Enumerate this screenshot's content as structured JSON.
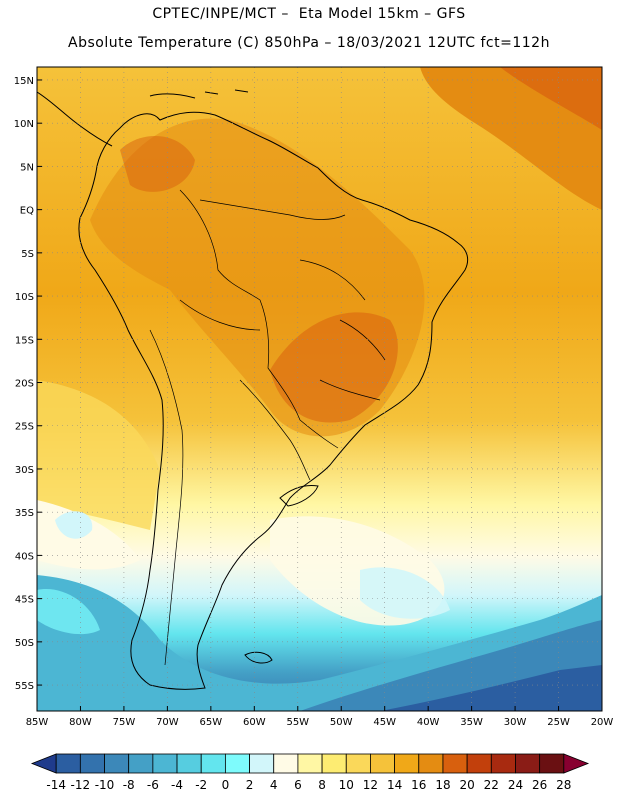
{
  "header": {
    "title_line1": "CPTEC/INPE/MCT –  Eta Model 15km – GFS",
    "title_line2": "Absolute Temperature (C) 850hPa – 18/03/2021 12UTC fct=112h"
  },
  "map": {
    "lat_labels": [
      "15N",
      "10N",
      "5N",
      "EQ",
      "5S",
      "10S",
      "15S",
      "20S",
      "25S",
      "30S",
      "35S",
      "40S",
      "45S",
      "50S",
      "55S"
    ],
    "lat_values": [
      15,
      10,
      5,
      0,
      -5,
      -10,
      -15,
      -20,
      -25,
      -30,
      -35,
      -40,
      -45,
      -50,
      -55
    ],
    "lon_labels": [
      "85W",
      "80W",
      "75W",
      "70W",
      "65W",
      "60W",
      "55W",
      "50W",
      "45W",
      "40W",
      "35W",
      "30W",
      "25W",
      "20W"
    ],
    "lon_values": [
      -85,
      -80,
      -75,
      -70,
      -65,
      -60,
      -55,
      -50,
      -45,
      -40,
      -35,
      -30,
      -25,
      -20
    ],
    "lat_range": [
      -58,
      16.5
    ],
    "lon_range": [
      -85,
      -20
    ]
  },
  "legend": {
    "levels": [
      "-14",
      "-12",
      "-10",
      "-8",
      "-6",
      "-4",
      "-2",
      "0",
      "2",
      "4",
      "6",
      "8",
      "10",
      "12",
      "14",
      "16",
      "18",
      "20",
      "22",
      "24",
      "26",
      "28"
    ],
    "colors": [
      "#5a0a24",
      "#1f3b8c",
      "#2b5ea1",
      "#3372ad",
      "#3c88b9",
      "#44a0c6",
      "#4cb6d3",
      "#56cde0",
      "#63e5ee",
      "#7efbfc",
      "#d2f6fa",
      "#fffbe6",
      "#fff7a4",
      "#fdec72",
      "#fad85a",
      "#f5c23a",
      "#f0a818",
      "#e48c12",
      "#d8600e",
      "#c2400c",
      "#a82a10",
      "#8a1c16",
      "#6a1012",
      "#880030"
    ]
  }
}
